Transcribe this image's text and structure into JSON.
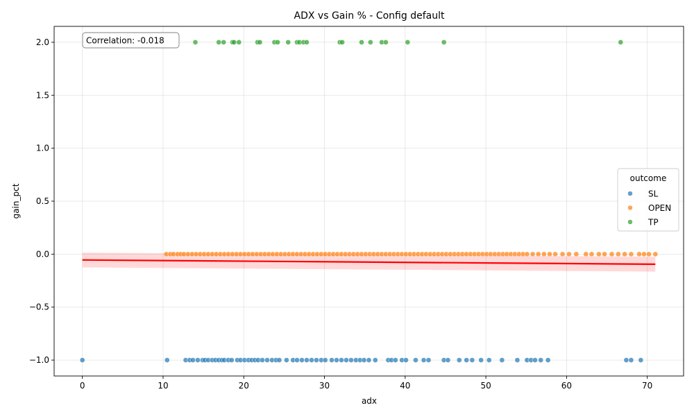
{
  "chart_data": {
    "type": "scatter",
    "title": "ADX vs Gain % - Config default",
    "xlabel": "adx",
    "ylabel": "gain_pct",
    "xlim": [
      -3.5,
      74.5
    ],
    "ylim": [
      -1.15,
      2.15
    ],
    "xticks": [
      0,
      10,
      20,
      30,
      40,
      50,
      60,
      70
    ],
    "yticks": [
      -1.0,
      -0.5,
      0.0,
      0.5,
      1.0,
      1.5,
      2.0
    ],
    "xtick_labels": [
      "0",
      "10",
      "20",
      "30",
      "40",
      "50",
      "60",
      "70"
    ],
    "ytick_labels": [
      "−1.0",
      "−0.5",
      "0.0",
      "0.5",
      "1.0",
      "1.5",
      "2.0"
    ],
    "grid": true,
    "annotation": "Correlation: -0.018",
    "legend": {
      "title": "outcome",
      "placement": "center-right",
      "entries": [
        "SL",
        "OPEN",
        "TP"
      ]
    },
    "colors": {
      "SL": "#1f77b4",
      "OPEN": "#ff7f0e",
      "TP": "#2ca02c",
      "regression": "#ff0000"
    },
    "regression": {
      "x": [
        0,
        71
      ],
      "y": [
        -0.055,
        -0.095
      ],
      "ci_lower": [
        -0.125,
        -0.165
      ],
      "ci_upper": [
        0.015,
        -0.025
      ]
    },
    "series": [
      {
        "name": "SL",
        "y": -1.0,
        "x": [
          0.0,
          10.5,
          12.8,
          13.3,
          13.7,
          14.3,
          14.9,
          15.2,
          15.6,
          16.1,
          16.5,
          16.9,
          17.3,
          17.6,
          18.1,
          18.5,
          19.2,
          19.6,
          20.1,
          20.6,
          21.0,
          21.4,
          21.8,
          22.3,
          22.9,
          23.5,
          24.0,
          24.4,
          25.3,
          26.1,
          26.6,
          27.2,
          27.8,
          28.4,
          29.0,
          29.6,
          30.1,
          30.9,
          31.5,
          32.1,
          32.7,
          33.3,
          33.9,
          34.4,
          34.9,
          35.5,
          36.3,
          37.9,
          38.3,
          38.8,
          39.6,
          40.1,
          41.3,
          42.3,
          42.9,
          44.8,
          45.3,
          46.7,
          47.6,
          48.3,
          49.4,
          50.4,
          52.0,
          53.9,
          55.1,
          55.6,
          56.1,
          56.8,
          57.7,
          67.4,
          68.0,
          69.2
        ]
      },
      {
        "name": "OPEN",
        "y": 0.0,
        "x": [
          10.4,
          10.9,
          11.3,
          11.8,
          12.2,
          12.6,
          13.1,
          13.6,
          14.1,
          14.6,
          15.1,
          15.6,
          16.1,
          16.6,
          17.1,
          17.6,
          18.1,
          18.6,
          19.1,
          19.6,
          20.1,
          20.6,
          21.1,
          21.6,
          22.1,
          22.6,
          23.1,
          23.6,
          24.1,
          24.6,
          25.1,
          25.6,
          26.1,
          26.6,
          27.1,
          27.6,
          28.1,
          28.6,
          29.1,
          29.6,
          30.1,
          30.6,
          31.1,
          31.6,
          32.1,
          32.6,
          33.1,
          33.6,
          34.1,
          34.6,
          35.1,
          35.6,
          36.1,
          36.6,
          37.1,
          37.6,
          38.1,
          38.6,
          39.1,
          39.6,
          40.1,
          40.6,
          41.1,
          41.6,
          42.1,
          42.6,
          43.1,
          43.6,
          44.1,
          44.6,
          45.1,
          45.6,
          46.1,
          46.6,
          47.1,
          47.6,
          48.1,
          48.6,
          49.1,
          49.6,
          50.1,
          50.6,
          51.1,
          51.6,
          52.1,
          52.6,
          53.1,
          53.6,
          54.1,
          54.6,
          55.1,
          55.8,
          56.5,
          57.2,
          57.9,
          58.6,
          59.5,
          60.3,
          61.2,
          62.4,
          63.1,
          64.0,
          64.7,
          65.6,
          66.4,
          67.2,
          68.0,
          69.0,
          69.6,
          70.2,
          71.0
        ]
      },
      {
        "name": "TP",
        "y": 2.0,
        "x": [
          14.0,
          16.9,
          17.5,
          18.6,
          18.8,
          19.4,
          21.7,
          22.0,
          23.8,
          24.2,
          25.5,
          26.6,
          26.9,
          27.4,
          27.8,
          31.9,
          32.2,
          34.6,
          35.7,
          37.1,
          37.6,
          40.3,
          44.8,
          66.7
        ]
      }
    ]
  }
}
